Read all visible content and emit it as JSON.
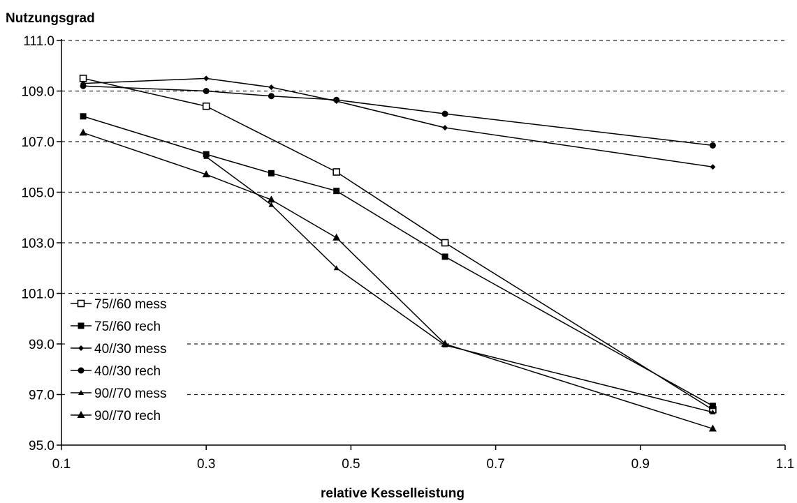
{
  "chart_data": {
    "type": "line",
    "title": "Nutzungsgrad",
    "xlabel": "relative Kesselleistung",
    "ylabel": "",
    "xlim": [
      0.1,
      1.1
    ],
    "ylim": [
      95.0,
      111.0
    ],
    "xticks": [
      "0.1",
      "0.3",
      "0.5",
      "0.7",
      "0.9",
      "1.1"
    ],
    "yticks": [
      "95.0",
      "97.0",
      "99.0",
      "101.0",
      "103.0",
      "105.0",
      "107.0",
      "109.0",
      "111.0"
    ],
    "grid": "horizontal dashed",
    "legend_position": "lower-left",
    "series": [
      {
        "name": "75//60 mess",
        "marker": "open-square",
        "points": [
          [
            0.13,
            109.5
          ],
          [
            0.3,
            108.4
          ],
          [
            0.48,
            105.8
          ],
          [
            0.63,
            103.0
          ],
          [
            1.0,
            96.4
          ]
        ]
      },
      {
        "name": "75//60 rech",
        "marker": "square",
        "points": [
          [
            0.13,
            108.0
          ],
          [
            0.3,
            106.5
          ],
          [
            0.39,
            105.75
          ],
          [
            0.48,
            105.05
          ],
          [
            0.63,
            102.45
          ],
          [
            1.0,
            96.55
          ]
        ]
      },
      {
        "name": "40//30 mess",
        "marker": "small-diamond",
        "points": [
          [
            0.13,
            109.3
          ],
          [
            0.3,
            109.5
          ],
          [
            0.39,
            109.15
          ],
          [
            0.48,
            108.6
          ],
          [
            0.63,
            107.55
          ],
          [
            1.0,
            106.0
          ]
        ]
      },
      {
        "name": "40//30 rech",
        "marker": "circle",
        "points": [
          [
            0.13,
            109.2
          ],
          [
            0.3,
            109.0
          ],
          [
            0.39,
            108.8
          ],
          [
            0.48,
            108.65
          ],
          [
            0.63,
            108.1
          ],
          [
            1.0,
            106.85
          ]
        ]
      },
      {
        "name": "90//70 mess",
        "marker": "small-triangle",
        "points": [
          [
            0.3,
            106.4
          ],
          [
            0.39,
            104.5
          ],
          [
            0.48,
            102.0
          ],
          [
            0.63,
            98.95
          ],
          [
            1.0,
            96.3
          ]
        ]
      },
      {
        "name": "90//70 rech",
        "marker": "triangle",
        "points": [
          [
            0.13,
            107.35
          ],
          [
            0.3,
            105.7
          ],
          [
            0.39,
            104.7
          ],
          [
            0.48,
            103.2
          ],
          [
            0.63,
            99.0
          ],
          [
            1.0,
            95.65
          ]
        ]
      }
    ]
  }
}
